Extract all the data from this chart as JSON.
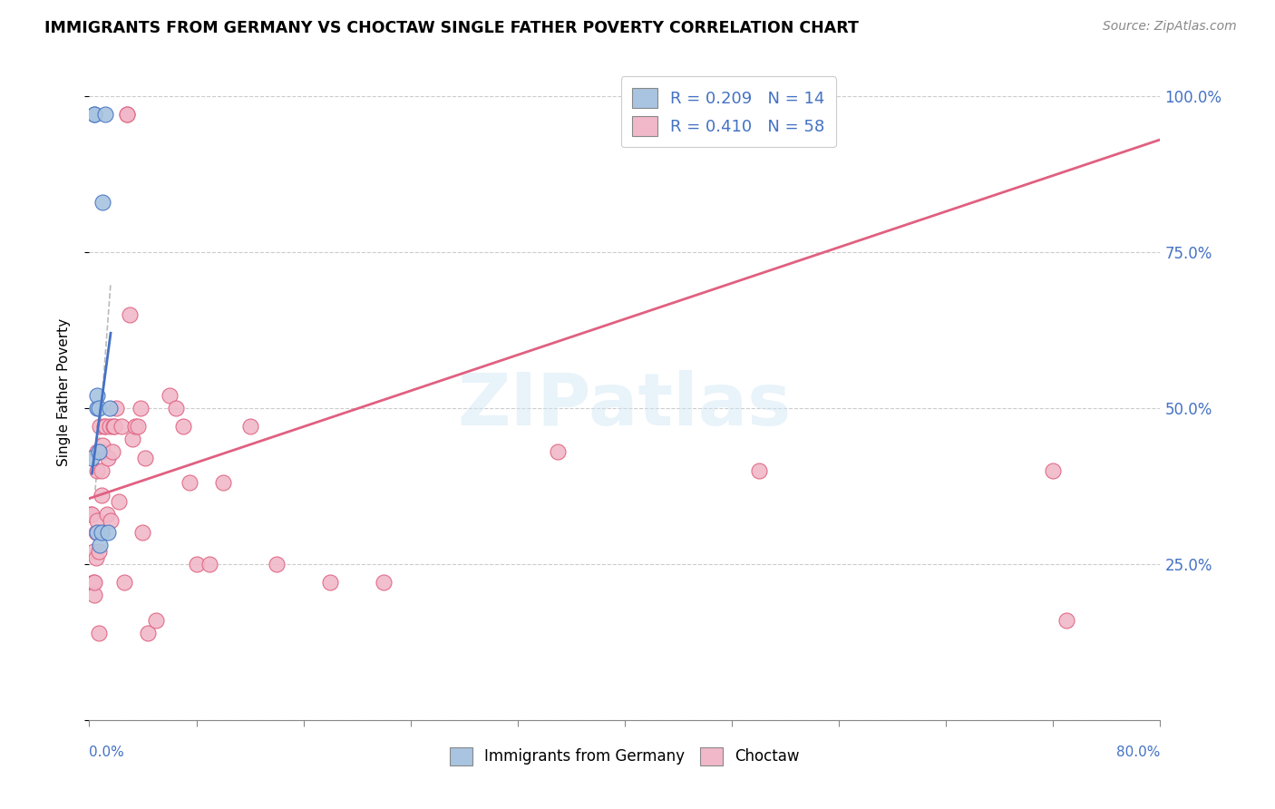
{
  "title": "IMMIGRANTS FROM GERMANY VS CHOCTAW SINGLE FATHER POVERTY CORRELATION CHART",
  "source": "Source: ZipAtlas.com",
  "ylabel": "Single Father Poverty",
  "color_germany": "#a8c4e0",
  "color_choctaw": "#f0b8c8",
  "color_trendline_germany": "#4472c4",
  "color_trendline_choctaw": "#e06080",
  "watermark_text": "ZIPatlas",
  "legend_r1_text": "R = 0.209",
  "legend_n1_text": "N = 14",
  "legend_r2_text": "R = 0.410",
  "legend_n2_text": "N = 58",
  "xlim": [
    0.0,
    0.8
  ],
  "ylim": [
    0.0,
    1.05
  ],
  "xtick_positions": [
    0.0,
    0.08,
    0.16,
    0.24,
    0.32,
    0.4,
    0.48,
    0.56,
    0.64,
    0.72,
    0.8
  ],
  "ytick_positions": [
    0.0,
    0.25,
    0.5,
    0.75,
    1.0
  ],
  "ytick_labels": [
    "",
    "25.0%",
    "50.0%",
    "75.0%",
    "100.0%"
  ],
  "choctaw_trend_x": [
    0.0,
    0.8
  ],
  "choctaw_trend_y": [
    0.355,
    0.93
  ],
  "germany_trend_x": [
    0.002,
    0.016
  ],
  "germany_trend_y": [
    0.395,
    0.62
  ],
  "dashed_line_x": [
    0.004,
    0.016
  ],
  "dashed_line_y": [
    0.355,
    0.7
  ],
  "germany_x": [
    0.002,
    0.004,
    0.004,
    0.006,
    0.006,
    0.006,
    0.007,
    0.007,
    0.008,
    0.009,
    0.01,
    0.012,
    0.014,
    0.015
  ],
  "germany_y": [
    0.42,
    0.97,
    0.97,
    0.5,
    0.52,
    0.3,
    0.43,
    0.5,
    0.28,
    0.3,
    0.83,
    0.97,
    0.3,
    0.5
  ],
  "choctaw_x": [
    0.001,
    0.002,
    0.003,
    0.003,
    0.004,
    0.004,
    0.005,
    0.005,
    0.006,
    0.006,
    0.006,
    0.007,
    0.007,
    0.008,
    0.008,
    0.009,
    0.009,
    0.01,
    0.01,
    0.011,
    0.012,
    0.013,
    0.014,
    0.015,
    0.016,
    0.017,
    0.018,
    0.019,
    0.02,
    0.022,
    0.024,
    0.026,
    0.028,
    0.028,
    0.03,
    0.032,
    0.034,
    0.036,
    0.038,
    0.04,
    0.042,
    0.044,
    0.05,
    0.06,
    0.065,
    0.07,
    0.075,
    0.08,
    0.09,
    0.1,
    0.12,
    0.14,
    0.18,
    0.22,
    0.35,
    0.5,
    0.72,
    0.73
  ],
  "choctaw_y": [
    0.33,
    0.33,
    0.22,
    0.27,
    0.2,
    0.22,
    0.26,
    0.3,
    0.32,
    0.4,
    0.43,
    0.14,
    0.27,
    0.43,
    0.47,
    0.36,
    0.4,
    0.43,
    0.44,
    0.47,
    0.47,
    0.33,
    0.42,
    0.47,
    0.32,
    0.43,
    0.47,
    0.47,
    0.5,
    0.35,
    0.47,
    0.22,
    0.97,
    0.97,
    0.65,
    0.45,
    0.47,
    0.47,
    0.5,
    0.3,
    0.42,
    0.14,
    0.16,
    0.52,
    0.5,
    0.47,
    0.38,
    0.25,
    0.25,
    0.38,
    0.47,
    0.25,
    0.22,
    0.22,
    0.43,
    0.4,
    0.4,
    0.16
  ]
}
